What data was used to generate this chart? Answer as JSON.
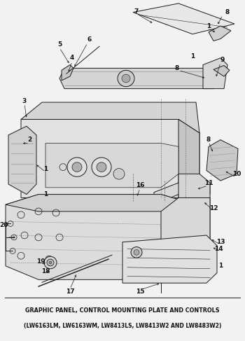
{
  "title_line1": "GRAPHIC PANEL, CONTROL MOUNTING PLATE AND CONTROLS",
  "title_line2": "(LW6163LM, LW6163WM, LW8413LS, LW8413W2 AND LW8483W2)",
  "bg_color": "#f2f2f2",
  "fig_width": 3.5,
  "fig_height": 4.87,
  "dpi": 100,
  "title_fontsize": 5.8,
  "title2_fontsize": 5.5
}
